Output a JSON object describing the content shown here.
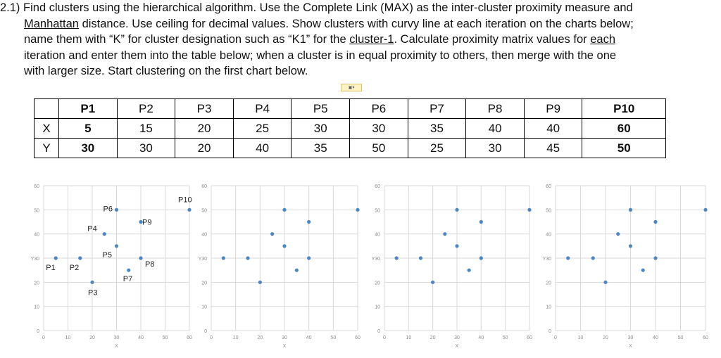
{
  "question": {
    "number": "2.1)",
    "line1": "Find clusters using the hierarchical algorithm. Use the Complete Link (MAX) as the inter-cluster proximity measure and",
    "line2_u": "Manhattan",
    "line2_rest": " distance. Use ceiling for decimal values. Show clusters with curvy line at each iteration on the charts below;",
    "line3_a": "name them with “K” for cluster designation such as “K1” for the ",
    "line3_u1": "cluster-1",
    "line3_b": ". Calculate proximity matrix values for ",
    "line3_u2": "each",
    "line4": "iteration and enter them into the table below; when a cluster is in equal proximity to others, then merge with the one",
    "line5": "with larger size. Start clustering on the first chart below."
  },
  "table": {
    "headers": [
      "P1",
      "P2",
      "P3",
      "P4",
      "P5",
      "P6",
      "P7",
      "P8",
      "P9",
      "P10"
    ],
    "bold_columns": [
      0,
      9
    ],
    "rows": [
      {
        "label": "X",
        "values": [
          "5",
          "15",
          "20",
          "25",
          "30",
          "30",
          "35",
          "40",
          "40",
          "60"
        ]
      },
      {
        "label": "Y",
        "values": [
          "30",
          "30",
          "20",
          "40",
          "35",
          "50",
          "25",
          "30",
          "45",
          "50"
        ]
      }
    ]
  },
  "chart_data": [
    {
      "type": "scatter",
      "xlabel": "X",
      "ylabel": "Y",
      "xlim": [
        0,
        60
      ],
      "ylim": [
        0,
        60
      ],
      "xticks": [
        "0",
        "10",
        "20",
        "30",
        "40",
        "50",
        "60"
      ],
      "yticks": [
        "0",
        "10",
        "20",
        "30",
        "40",
        "50",
        "60"
      ],
      "grid": true,
      "color": "#4a86c5",
      "points": [
        {
          "label": "P1",
          "x": 5,
          "y": 30
        },
        {
          "label": "P2",
          "x": 15,
          "y": 30
        },
        {
          "label": "P3",
          "x": 20,
          "y": 20
        },
        {
          "label": "P4",
          "x": 25,
          "y": 40
        },
        {
          "label": "P5",
          "x": 30,
          "y": 35
        },
        {
          "label": "P6",
          "x": 30,
          "y": 50
        },
        {
          "label": "P7",
          "x": 35,
          "y": 25
        },
        {
          "label": "P8",
          "x": 40,
          "y": 30
        },
        {
          "label": "P9",
          "x": 40,
          "y": 45
        },
        {
          "label": "P10",
          "x": 60,
          "y": 50
        }
      ]
    },
    {
      "type": "scatter",
      "xlabel": "X",
      "ylabel": "Y",
      "xlim": [
        0,
        60
      ],
      "ylim": [
        0,
        60
      ],
      "xticks": [
        "0",
        "10",
        "20",
        "30",
        "40",
        "50",
        "60"
      ],
      "yticks": [
        "0",
        "10",
        "20",
        "30",
        "40",
        "50",
        "60"
      ],
      "grid": true,
      "color": "#4a86c5",
      "points": [
        {
          "x": 5,
          "y": 30
        },
        {
          "x": 15,
          "y": 30
        },
        {
          "x": 20,
          "y": 20
        },
        {
          "x": 25,
          "y": 40
        },
        {
          "x": 30,
          "y": 35
        },
        {
          "x": 30,
          "y": 50
        },
        {
          "x": 35,
          "y": 25
        },
        {
          "x": 40,
          "y": 30
        },
        {
          "x": 40,
          "y": 45
        },
        {
          "x": 60,
          "y": 50
        }
      ]
    },
    {
      "type": "scatter",
      "xlabel": "X",
      "ylabel": "Y",
      "xlim": [
        0,
        60
      ],
      "ylim": [
        0,
        60
      ],
      "xticks": [
        "0",
        "10",
        "20",
        "30",
        "40",
        "50",
        "60"
      ],
      "yticks": [
        "0",
        "10",
        "20",
        "30",
        "40",
        "50",
        "60"
      ],
      "grid": true,
      "color": "#4a86c5",
      "points": [
        {
          "x": 5,
          "y": 30
        },
        {
          "x": 15,
          "y": 30
        },
        {
          "x": 20,
          "y": 20
        },
        {
          "x": 25,
          "y": 40
        },
        {
          "x": 30,
          "y": 35
        },
        {
          "x": 30,
          "y": 50
        },
        {
          "x": 35,
          "y": 25
        },
        {
          "x": 40,
          "y": 30
        },
        {
          "x": 40,
          "y": 45
        },
        {
          "x": 60,
          "y": 50
        }
      ]
    },
    {
      "type": "scatter",
      "xlabel": "X",
      "ylabel": "Y",
      "xlim": [
        0,
        60
      ],
      "ylim": [
        0,
        60
      ],
      "xticks": [
        "0",
        "10",
        "20",
        "30",
        "40",
        "50",
        "60"
      ],
      "yticks": [
        "0",
        "10",
        "20",
        "30",
        "40",
        "50",
        "60"
      ],
      "grid": true,
      "color": "#4a86c5",
      "points": [
        {
          "x": 5,
          "y": 30
        },
        {
          "x": 15,
          "y": 30
        },
        {
          "x": 20,
          "y": 20
        },
        {
          "x": 25,
          "y": 40
        },
        {
          "x": 30,
          "y": 35
        },
        {
          "x": 30,
          "y": 50
        },
        {
          "x": 35,
          "y": 25
        },
        {
          "x": 40,
          "y": 30
        },
        {
          "x": 40,
          "y": 45
        },
        {
          "x": 60,
          "y": 50
        }
      ]
    }
  ]
}
